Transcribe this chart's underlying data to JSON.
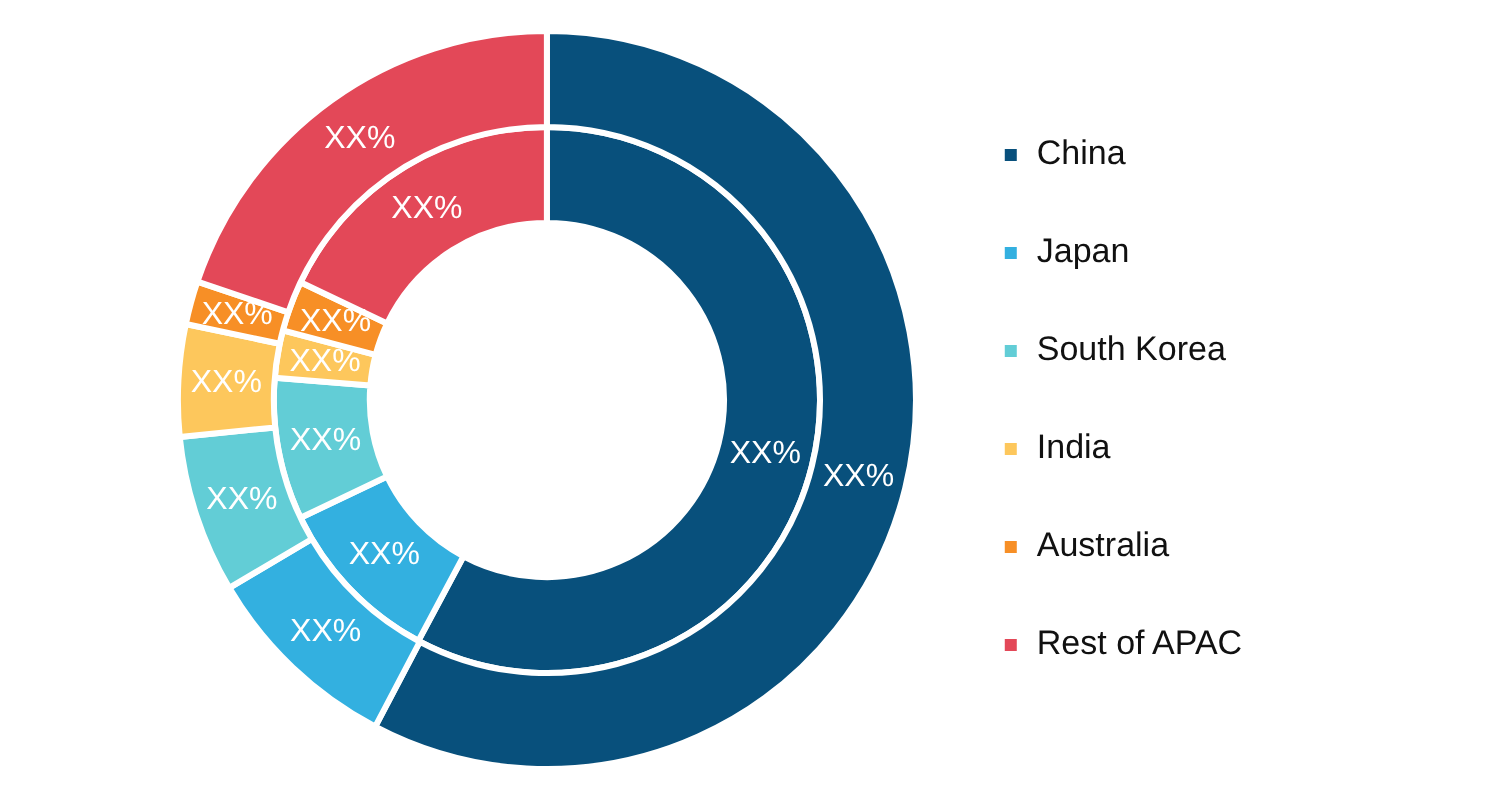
{
  "chart_data": {
    "type": "donut",
    "categories": [
      "China",
      "Japan",
      "South Korea",
      "India",
      "Australia",
      "Rest of APAC"
    ],
    "series": [
      {
        "colors": [
          "#08507c",
          "#33b0e0",
          "#62cdd6",
          "#fdc75c",
          "#f78f26",
          "#e34858"
        ],
        "values": [
          57.7,
          8.8,
          6.9,
          4.9,
          1.9,
          19.8
        ],
        "value_labels": [
          "XX%",
          "XX%",
          "XX%",
          "XX%",
          "XX%",
          "XX%"
        ]
      },
      {
        "colors": [
          "#08507c",
          "#33b0e0",
          "#62cdd6",
          "#fdc75c",
          "#f78f26",
          "#e34858"
        ],
        "values": [
          57.8,
          10.1,
          8.4,
          2.8,
          3.0,
          17.9
        ],
        "value_labels": [
          "XX%",
          "XX%",
          "XX%",
          "XX%",
          "XX%",
          "XX%"
        ]
      }
    ],
    "legend": "right"
  }
}
